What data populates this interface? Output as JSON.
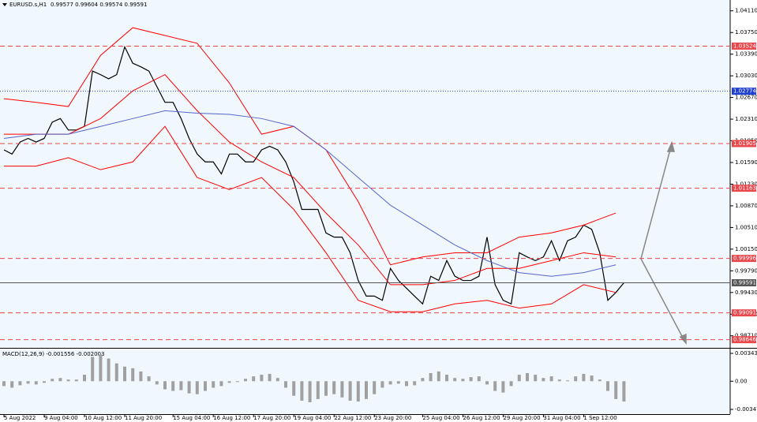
{
  "chart_data": [
    {
      "type": "line",
      "symbol": "EURUSD.s,H1",
      "ohlc": "0.99577 0.99604 0.99574 0.99591",
      "ylim": [
        0.9851,
        1.0429
      ],
      "yticks": [
        {
          "value": 1.0411,
          "label": "1.04110"
        },
        {
          "value": 1.0375,
          "label": "1.03750"
        },
        {
          "value": 1.0339,
          "label": "1.03390"
        },
        {
          "value": 1.0303,
          "label": "1.03030"
        },
        {
          "value": 1.0267,
          "label": "1.02670"
        },
        {
          "value": 1.0231,
          "label": "1.02310"
        },
        {
          "value": 1.0195,
          "label": "1.01950"
        },
        {
          "value": 1.0159,
          "label": "1.01590"
        },
        {
          "value": 1.0123,
          "label": "1.01230"
        },
        {
          "value": 1.0087,
          "label": "1.00870"
        },
        {
          "value": 1.0051,
          "label": "1.00510"
        },
        {
          "value": 1.0015,
          "label": "1.00150"
        },
        {
          "value": 0.9979,
          "label": "0.99790"
        },
        {
          "value": 0.9943,
          "label": "0.99430"
        },
        {
          "value": 0.9907,
          "label": "0.99070"
        },
        {
          "value": 0.9871,
          "label": "0.98710"
        }
      ],
      "levels": [
        {
          "value": 1.03524,
          "label": "1.03524",
          "color": "#e8484c",
          "style": "dashed"
        },
        {
          "value": 1.02774,
          "label": "1.02774",
          "color": "#2040d0",
          "style": "dotted"
        },
        {
          "value": 1.01905,
          "label": "1.01905",
          "color": "#e8484c",
          "style": "dashed"
        },
        {
          "value": 1.01163,
          "label": "1.01163",
          "color": "#e8484c",
          "style": "dashed"
        },
        {
          "value": 0.99996,
          "label": "0.99996",
          "color": "#e8484c",
          "style": "dashed"
        },
        {
          "value": 0.99591,
          "label": "0.99591",
          "color": "#555555",
          "style": "solid"
        },
        {
          "value": 0.99091,
          "label": "0.99091",
          "color": "#e8484c",
          "style": "dashed"
        },
        {
          "value": 0.98646,
          "label": "0.98646",
          "color": "#e8484c",
          "style": "dashed"
        }
      ],
      "series": [
        {
          "color": "#000000",
          "values": [
            1.018,
            1.0173,
            1.0193,
            1.0199,
            1.0193,
            1.0199,
            1.0226,
            1.0232,
            1.0213,
            1.0213,
            1.0219,
            1.0311,
            1.0305,
            1.0298,
            1.0305,
            1.0351,
            1.0324,
            1.0318,
            1.0311,
            1.0285,
            1.0259,
            1.0259,
            1.0232,
            1.0199,
            1.0173,
            1.016,
            1.016,
            1.014,
            1.0173,
            1.0173,
            1.016,
            1.016,
            1.018,
            1.0186,
            1.018,
            1.016,
            1.0127,
            1.0081,
            1.0081,
            1.0081,
            1.0042,
            1.0035,
            1.0035,
            1.0009,
            0.9963,
            0.9937,
            0.9937,
            0.993,
            0.9983,
            0.9963,
            0.995,
            0.9937,
            0.9924,
            0.997,
            0.9963,
            0.9996,
            0.997,
            0.9963,
            0.9963,
            0.997,
            1.0035,
            0.9956,
            0.993,
            0.9924,
            1.0009,
            1.0002,
            0.9996,
            1.0002,
            1.0029,
            0.9996,
            1.0029,
            1.0035,
            1.0055,
            1.0048,
            1.0009,
            0.993,
            0.9943,
            0.99591
          ]
        },
        {
          "color": "#ff0000",
          "x": [
            0,
            4,
            8,
            12,
            16,
            20,
            24,
            28,
            32,
            36,
            40,
            44,
            48,
            52,
            56,
            60,
            64,
            68,
            72,
            76
          ],
          "values": [
            1.0265,
            1.0259,
            1.0252,
            1.0337,
            1.0383,
            1.037,
            1.0357,
            1.0291,
            1.0206,
            1.0219,
            1.018,
            1.0094,
            0.9989,
            1.0002,
            1.0009,
            1.0009,
            1.0035,
            1.0042,
            1.0055,
            1.0075
          ]
        },
        {
          "color": "#ff0000",
          "x": [
            0,
            4,
            8,
            12,
            16,
            20,
            24,
            28,
            32,
            36,
            40,
            44,
            48,
            52,
            56,
            60,
            64,
            68,
            72,
            76
          ],
          "values": [
            1.0206,
            1.0206,
            1.0206,
            1.0232,
            1.0278,
            1.0305,
            1.0245,
            1.0193,
            1.016,
            1.0134,
            1.0075,
            1.0022,
            0.9956,
            0.9956,
            0.9963,
            0.9983,
            0.9983,
            0.9996,
            1.0009,
            1.0002
          ]
        },
        {
          "color": "#ff0000",
          "x": [
            0,
            4,
            8,
            12,
            16,
            20,
            24,
            28,
            32,
            36,
            40,
            44,
            48,
            52,
            56,
            60,
            64,
            68,
            72,
            76
          ],
          "values": [
            1.0153,
            1.0153,
            1.0167,
            1.0147,
            1.016,
            1.0219,
            1.0134,
            1.0114,
            1.0134,
            1.0081,
            1.0009,
            0.993,
            0.9911,
            0.9911,
            0.9924,
            0.993,
            0.9917,
            0.9924,
            0.9956,
            0.9943
          ]
        },
        {
          "color": "#5566cc",
          "x": [
            0,
            4,
            8,
            12,
            16,
            20,
            24,
            28,
            32,
            36,
            40,
            44,
            48,
            52,
            56,
            60,
            64,
            68,
            72,
            76
          ],
          "values": [
            1.0199,
            1.0206,
            1.0206,
            1.0219,
            1.0232,
            1.0245,
            1.0241,
            1.0239,
            1.0232,
            1.0219,
            1.018,
            1.0134,
            1.0088,
            1.0055,
            1.0022,
            0.9996,
            0.9976,
            0.997,
            0.9976,
            0.9989
          ]
        }
      ]
    },
    {
      "type": "bar",
      "title": "MACD(12,26,9) -0.001556 -0.002003",
      "color": "#a0a0a0",
      "ylim": [
        -0.00406,
        0.00392
      ],
      "yticks": [
        0.003432,
        {
          "value": 0,
          "label": "0.00"
        },
        -0.003478
      ],
      "categories": [
        "5 Aug 2022",
        null,
        null,
        null,
        null,
        "9 Aug 04:00",
        null,
        null,
        null,
        null,
        "10 Aug 12:00",
        null,
        null,
        null,
        null,
        "11 Aug 20:00",
        null,
        null,
        null,
        null,
        null,
        "15 Aug 04:00",
        null,
        null,
        null,
        null,
        "16 Aug 12:00",
        null,
        null,
        null,
        null,
        "17 Aug 20:00",
        null,
        null,
        null,
        null,
        "19 Aug 04:00",
        null,
        null,
        null,
        null,
        "22 Aug 12:00",
        null,
        null,
        null,
        null,
        "23 Aug 20:00",
        null,
        null,
        null,
        null,
        null,
        "25 Aug 04:00",
        null,
        null,
        null,
        null,
        "26 Aug 12:00",
        null,
        null,
        null,
        null,
        "29 Aug 20:00",
        null,
        null,
        null,
        null,
        "31 Aug 04:00",
        null,
        null,
        null,
        null,
        "1 Sep 12:00",
        null,
        null,
        null,
        null,
        null
      ],
      "values": [
        -0.0006,
        -0.0008,
        -0.0005,
        -0.0003,
        -0.0004,
        -0.0002,
        0.0003,
        0.0004,
        0.0002,
        0.0002,
        0.0008,
        0.003,
        0.0033,
        0.0028,
        0.0022,
        0.0018,
        0.0016,
        0.0012,
        0.0006,
        -0.0004,
        -0.001,
        -0.0012,
        -0.0011,
        -0.0015,
        -0.0016,
        -0.0012,
        -0.0008,
        -0.0006,
        -0.0002,
        -0.0001,
        0.0003,
        0.0006,
        0.0008,
        0.0009,
        0.0004,
        -0.0008,
        -0.0018,
        -0.0024,
        -0.0026,
        -0.0022,
        -0.0018,
        -0.0016,
        -0.002,
        -0.0024,
        -0.0025,
        -0.0022,
        -0.0016,
        -0.0008,
        -0.0004,
        -0.0003,
        -0.0006,
        -0.0005,
        0.0004,
        0.001,
        0.0012,
        0.0008,
        0.0004,
        0.0003,
        0.0005,
        0.0006,
        -0.0004,
        -0.0012,
        -0.0014,
        -0.0006,
        0.0008,
        0.001,
        0.0008,
        0.0004,
        0.0006,
        0.0002,
        0.0001,
        0.0006,
        0.0009,
        0.0007,
        0.0002,
        -0.0012,
        -0.0022,
        -0.0025
      ]
    }
  ]
}
